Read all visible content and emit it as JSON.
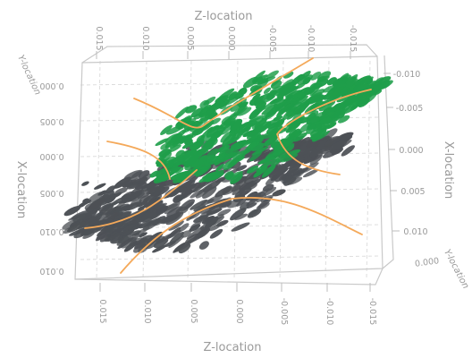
{
  "chart_data": {
    "type": "scatter",
    "dimensions": 3,
    "axes": {
      "z_top": {
        "title": "Z-location",
        "ticks": [
          "0.015",
          "0.010",
          "0.005",
          "0.000",
          "-0.005",
          "-0.010",
          "-0.015"
        ],
        "range": [
          0.015,
          -0.015
        ]
      },
      "z_bottom": {
        "title": "Z-location",
        "ticks": [
          "0.015",
          "0.010",
          "0.005",
          "0.000",
          "-0.005",
          "-0.010",
          "-0.015"
        ],
        "range": [
          0.015,
          -0.015
        ]
      },
      "y_left": {
        "title": "Y-location",
        "ticks": [
          "0.000",
          "0.010"
        ],
        "range": [
          0.0,
          0.01
        ]
      },
      "x_left": {
        "title": "X-location",
        "ticks": [
          "0.005",
          "0.000",
          "0.005",
          "0.010"
        ],
        "range": [
          0.01,
          -0.005
        ]
      },
      "x_right": {
        "title": "X-location",
        "ticks": [
          "-0.010",
          "-0.005",
          "0.000",
          "0.005",
          "0.010"
        ],
        "range": [
          -0.01,
          0.01
        ]
      },
      "y_right": {
        "title": "Y-location",
        "ticks": [
          "0.000"
        ]
      }
    },
    "series": [
      {
        "color": "#1f9e4a",
        "description_shown": "upper green point cloud"
      },
      {
        "color": "#4d5156",
        "description_shown": "lower dark grey point cloud"
      }
    ],
    "streamline_color": "#f4a95a",
    "grid": true,
    "legend": "none"
  }
}
